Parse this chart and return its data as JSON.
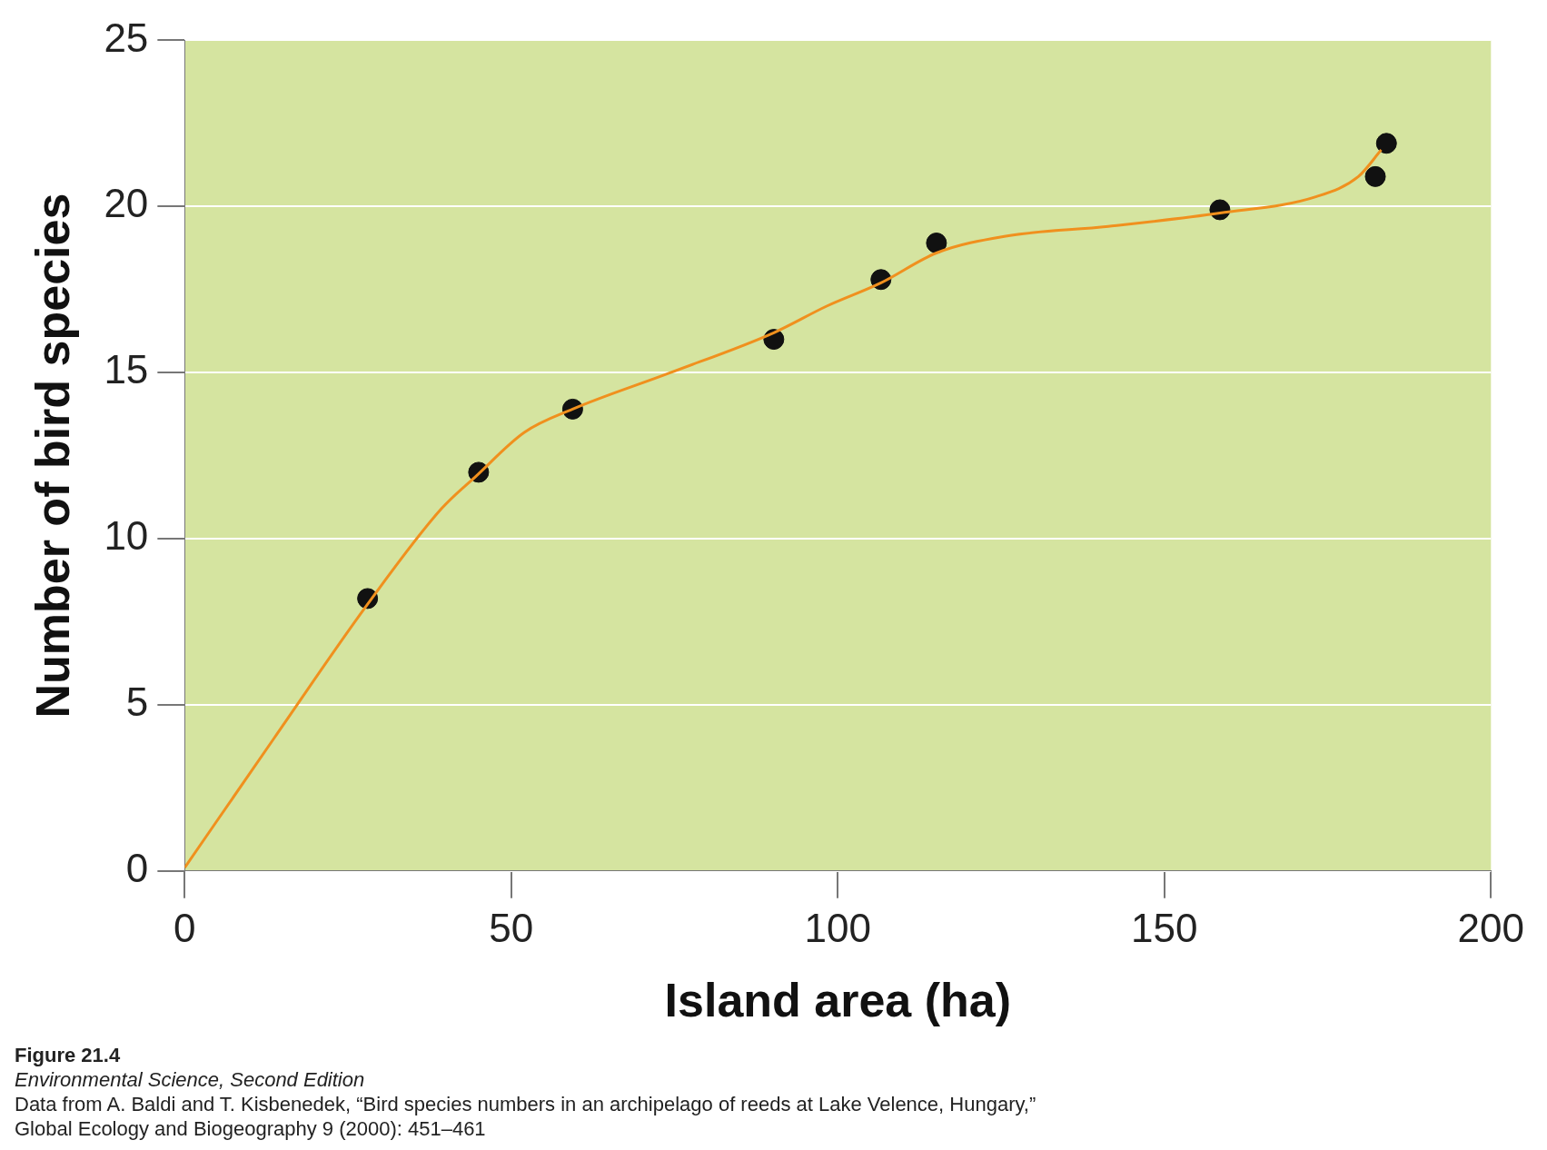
{
  "chart_data": {
    "type": "scatter",
    "xlabel": "Island area (ha)",
    "ylabel": "Number of bird species",
    "xlim": [
      0,
      200
    ],
    "xticks": [
      0,
      50,
      100,
      150,
      200
    ],
    "ylim": [
      0,
      25
    ],
    "yticks": [
      0,
      5,
      10,
      15,
      20,
      25
    ],
    "grid": "y",
    "legend": false,
    "marker": "circle",
    "series": [
      {
        "type": "line",
        "color": "#f0901e",
        "marker": "none",
        "x": [
          0,
          13.7,
          27.9,
          39.3,
          44.7,
          52,
          59.4,
          74.4,
          90.2,
          98.3,
          106.6,
          115.1,
          125.5,
          141.4,
          158.5,
          173.3,
          179.7,
          183.2
        ],
        "values": [
          0.1,
          4.0,
          8.0,
          10.9,
          11.9,
          13.2,
          13.9,
          15.0,
          16.2,
          17.0,
          17.7,
          18.6,
          19.1,
          19.4,
          19.8,
          20.3,
          20.9,
          21.7
        ]
      },
      {
        "type": "scatter",
        "color": "#111111",
        "x": [
          28,
          45,
          59.4,
          90.2,
          106.6,
          115.1,
          158.5,
          182.3,
          184
        ],
        "values": [
          8.2,
          12,
          13.9,
          16,
          17.8,
          18.9,
          19.9,
          20.9,
          21.9
        ]
      }
    ],
    "annotations": [
      "Figure 21.4",
      "Environmental Science, Second Edition",
      "Data from A. Baldi and T. Kisbenedek, “Bird species numbers in an archipelago of reeds at Lake Velence, Hungary,”",
      "Global Ecology and Biogeography 9 (2000): 451–461"
    ]
  }
}
